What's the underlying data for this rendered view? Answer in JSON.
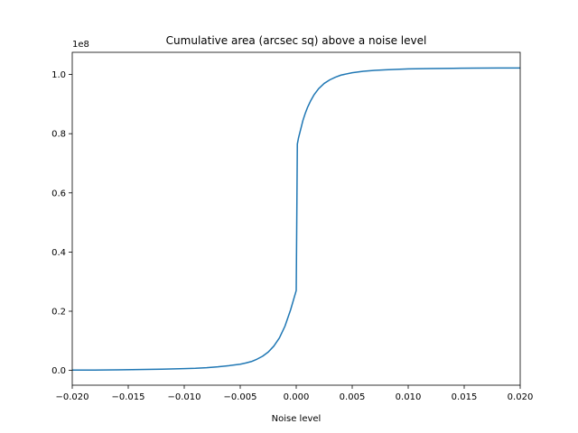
{
  "chart_data": {
    "type": "line",
    "title": "Cumulative area (arcsec sq) above a noise level",
    "xlabel": "Noise level",
    "ylabel": "",
    "y_offset_label": "1e8",
    "xlim": [
      -0.02,
      0.02
    ],
    "ylim": [
      -0.05,
      1.075
    ],
    "grid": false,
    "line_color": "#1f77b4",
    "x_ticks": [
      -0.02,
      -0.015,
      -0.01,
      -0.005,
      0.0,
      0.005,
      0.01,
      0.015,
      0.02
    ],
    "x_tick_labels": [
      "−0.020",
      "−0.015",
      "−0.010",
      "−0.005",
      "0.000",
      "0.005",
      "0.010",
      "0.015",
      "0.020"
    ],
    "y_ticks": [
      0.0,
      0.2,
      0.4,
      0.6,
      0.8,
      1.0
    ],
    "y_tick_labels": [
      "0.0",
      "0.2",
      "0.4",
      "0.6",
      "0.8",
      "1.0"
    ],
    "series": [
      {
        "x": [
          -0.02,
          -0.018,
          -0.016,
          -0.014,
          -0.012,
          -0.01,
          -0.009,
          -0.008,
          -0.007,
          -0.006,
          -0.005,
          -0.0045,
          -0.004,
          -0.0035,
          -0.003,
          -0.0025,
          -0.002,
          -0.0015,
          -0.001,
          -0.0005,
          0.0,
          0.0001,
          0.0002,
          0.0004,
          0.0006,
          0.0008,
          0.001,
          0.0013,
          0.0016,
          0.002,
          0.0025,
          0.003,
          0.0035,
          0.004,
          0.005,
          0.006,
          0.007,
          0.008,
          0.01,
          0.012,
          0.014,
          0.016,
          0.018,
          0.02
        ],
        "y": [
          0.001,
          0.001,
          0.002,
          0.003,
          0.004,
          0.006,
          0.007,
          0.009,
          0.012,
          0.016,
          0.021,
          0.025,
          0.03,
          0.038,
          0.048,
          0.062,
          0.082,
          0.11,
          0.15,
          0.205,
          0.27,
          0.765,
          0.785,
          0.815,
          0.845,
          0.868,
          0.888,
          0.912,
          0.932,
          0.952,
          0.97,
          0.982,
          0.991,
          0.998,
          1.006,
          1.011,
          1.014,
          1.016,
          1.019,
          1.02,
          1.021,
          1.0215,
          1.022,
          1.022
        ]
      }
    ]
  }
}
